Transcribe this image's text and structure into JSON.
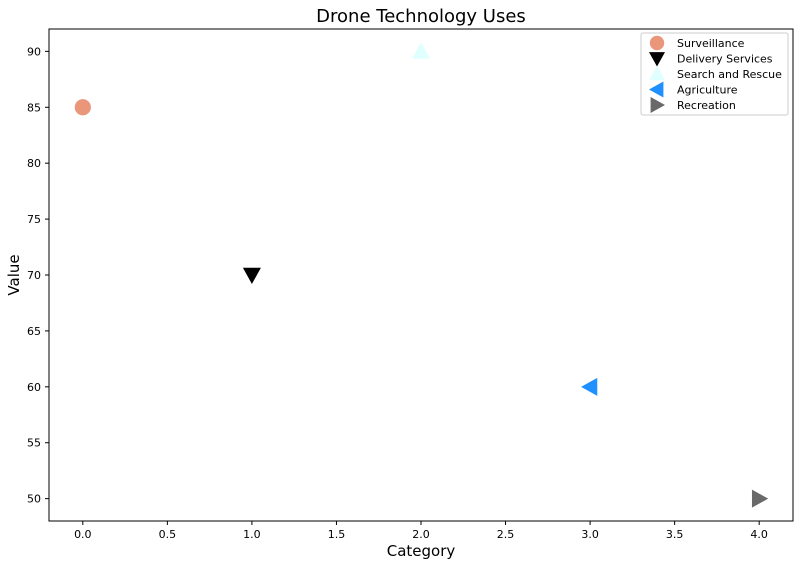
{
  "chart_data": {
    "type": "scatter",
    "title": "Drone Technology Uses",
    "xlabel": "Category",
    "ylabel": "Value",
    "xlim": [
      -0.2,
      4.2
    ],
    "ylim": [
      48,
      92
    ],
    "xticks": [
      "0.0",
      "0.5",
      "1.0",
      "1.5",
      "2.0",
      "2.5",
      "3.0",
      "3.5",
      "4.0"
    ],
    "yticks": [
      "50",
      "55",
      "60",
      "65",
      "70",
      "75",
      "80",
      "85",
      "90"
    ],
    "grid": false,
    "legend_position": "top-right",
    "series": [
      {
        "name": "Surveillance",
        "x": 0,
        "y": 85,
        "marker": "circle",
        "color": "#E9967A"
      },
      {
        "name": "Delivery Services",
        "x": 1,
        "y": 70,
        "marker": "triangle-down",
        "color": "#000000"
      },
      {
        "name": "Search and Rescue",
        "x": 2,
        "y": 90,
        "marker": "triangle-up",
        "color": "#E0FFFF"
      },
      {
        "name": "Agriculture",
        "x": 3,
        "y": 60,
        "marker": "triangle-left",
        "color": "#1E90FF"
      },
      {
        "name": "Recreation",
        "x": 4,
        "y": 50,
        "marker": "triangle-right",
        "color": "#696969"
      }
    ]
  }
}
